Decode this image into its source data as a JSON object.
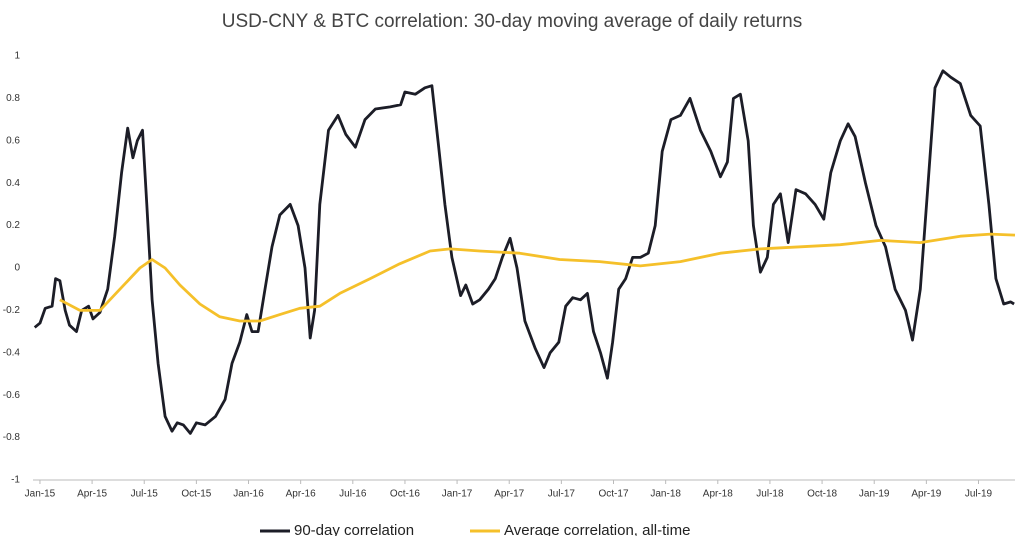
{
  "chart_data": {
    "type": "line",
    "title": "USD-CNY & BTC correlation: 30-day moving average of daily returns",
    "xlim": [
      -0.4,
      56.1
    ],
    "xticks": [
      {
        "value": 0,
        "label": "Jan-15"
      },
      {
        "value": 3,
        "label": "Apr-15"
      },
      {
        "value": 6,
        "label": "Jul-15"
      },
      {
        "value": 9,
        "label": "Oct-15"
      },
      {
        "value": 12,
        "label": "Jan-16"
      },
      {
        "value": 15,
        "label": "Apr-16"
      },
      {
        "value": 18,
        "label": "Jul-16"
      },
      {
        "value": 21,
        "label": "Oct-16"
      },
      {
        "value": 24,
        "label": "Jan-17"
      },
      {
        "value": 27,
        "label": "Apr-17"
      },
      {
        "value": 30,
        "label": "Jul-17"
      },
      {
        "value": 33,
        "label": "Oct-17"
      },
      {
        "value": 36,
        "label": "Jan-18"
      },
      {
        "value": 39,
        "label": "Apr-18"
      },
      {
        "value": 42,
        "label": "Jul-18"
      },
      {
        "value": 45,
        "label": "Oct-18"
      },
      {
        "value": 48,
        "label": "Jan-19"
      },
      {
        "value": 51,
        "label": "Apr-19"
      },
      {
        "value": 54,
        "label": "Jul-19"
      }
    ],
    "ylim": [
      -1,
      1
    ],
    "yticks": [
      1,
      0.8,
      0.6,
      0.4,
      0.2,
      0,
      -0.2,
      -0.4,
      -0.6,
      -0.8,
      -1
    ],
    "grid": false,
    "legend": "bottom",
    "series": [
      {
        "name": "90-day correlation",
        "color": "#1c1d27",
        "x": [
          -0.3,
          0,
          0.3,
          0.7,
          0.9,
          1.15,
          1.45,
          1.7,
          2.1,
          2.4,
          2.8,
          3.05,
          3.45,
          3.9,
          4.3,
          4.7,
          5.05,
          5.35,
          5.6,
          5.9,
          6.15,
          6.45,
          6.8,
          7.2,
          7.6,
          7.9,
          8.25,
          8.65,
          9.0,
          9.5,
          10.1,
          10.65,
          11.05,
          11.5,
          11.9,
          12.2,
          12.55,
          12.95,
          13.35,
          13.8,
          14.4,
          14.85,
          15.25,
          15.55,
          15.8,
          16.1,
          16.6,
          17.15,
          17.6,
          18.15,
          18.7,
          19.3,
          20.15,
          20.75,
          21.0,
          21.6,
          22.15,
          22.55,
          22.9,
          23.3,
          23.7,
          24.2,
          24.5,
          24.9,
          25.3,
          25.8,
          26.2,
          26.6,
          27.05,
          27.45,
          27.9,
          28.5,
          29.0,
          29.35,
          29.85,
          30.25,
          30.65,
          31.1,
          31.5,
          31.85,
          32.25,
          32.65,
          32.95,
          33.3,
          33.7,
          34.1,
          34.55,
          35.0,
          35.4,
          35.8,
          36.3,
          36.85,
          37.4,
          38.0,
          38.6,
          39.15,
          39.55,
          39.9,
          40.3,
          40.75,
          41.05,
          41.45,
          41.85,
          42.2,
          42.6,
          43.05,
          43.5,
          44.05,
          44.6,
          45.1,
          45.5,
          46.05,
          46.5,
          46.9,
          47.5,
          48.1,
          48.65,
          49.2,
          49.8,
          50.2,
          50.65,
          51.1,
          51.5,
          51.95,
          52.4,
          52.95,
          53.55,
          54.1,
          54.6,
          55.0,
          55.45,
          55.85,
          56.05
        ],
        "values": [
          -0.28,
          -0.26,
          -0.19,
          -0.18,
          -0.05,
          -0.06,
          -0.2,
          -0.27,
          -0.3,
          -0.2,
          -0.18,
          -0.24,
          -0.21,
          -0.1,
          0.15,
          0.45,
          0.66,
          0.52,
          0.6,
          0.65,
          0.3,
          -0.15,
          -0.45,
          -0.7,
          -0.77,
          -0.73,
          -0.74,
          -0.78,
          -0.73,
          -0.74,
          -0.7,
          -0.62,
          -0.45,
          -0.35,
          -0.22,
          -0.3,
          -0.3,
          -0.1,
          0.1,
          0.25,
          0.3,
          0.2,
          0.0,
          -0.33,
          -0.2,
          0.3,
          0.65,
          0.72,
          0.63,
          0.57,
          0.7,
          0.75,
          0.76,
          0.77,
          0.83,
          0.82,
          0.85,
          0.86,
          0.6,
          0.3,
          0.05,
          -0.13,
          -0.08,
          -0.17,
          -0.15,
          -0.1,
          -0.05,
          0.05,
          0.14,
          0.0,
          -0.25,
          -0.38,
          -0.47,
          -0.4,
          -0.35,
          -0.18,
          -0.14,
          -0.15,
          -0.12,
          -0.3,
          -0.4,
          -0.52,
          -0.35,
          -0.1,
          -0.05,
          0.05,
          0.05,
          0.07,
          0.2,
          0.55,
          0.7,
          0.72,
          0.8,
          0.65,
          0.55,
          0.43,
          0.5,
          0.8,
          0.82,
          0.6,
          0.2,
          -0.02,
          0.05,
          0.3,
          0.35,
          0.12,
          0.37,
          0.35,
          0.3,
          0.23,
          0.45,
          0.6,
          0.68,
          0.62,
          0.4,
          0.2,
          0.1,
          -0.1,
          -0.2,
          -0.34,
          -0.1,
          0.4,
          0.85,
          0.93,
          0.9,
          0.87,
          0.72,
          0.67,
          0.3,
          -0.05,
          -0.17,
          -0.16,
          -0.17
        ]
      },
      {
        "name": "Average correlation, all-time",
        "color": "#f5c02a",
        "x": [
          1.15,
          2.3,
          3.45,
          4.6,
          5.75,
          6.45,
          7.2,
          8.05,
          9.2,
          10.35,
          11.5,
          12.65,
          13.8,
          14.95,
          16.1,
          17.25,
          19.0,
          20.7,
          22.45,
          23.6,
          25.3,
          27.6,
          29.9,
          32.2,
          34.55,
          36.85,
          39.15,
          41.45,
          43.75,
          46.05,
          48.35,
          50.65,
          52.95,
          54.7,
          56.1
        ],
        "values": [
          -0.15,
          -0.2,
          -0.2,
          -0.1,
          0.0,
          0.04,
          0.0,
          -0.08,
          -0.17,
          -0.23,
          -0.25,
          -0.25,
          -0.22,
          -0.19,
          -0.18,
          -0.12,
          -0.05,
          0.02,
          0.08,
          0.09,
          0.08,
          0.07,
          0.04,
          0.03,
          0.01,
          0.03,
          0.07,
          0.09,
          0.1,
          0.11,
          0.13,
          0.12,
          0.15,
          0.16,
          0.155
        ]
      }
    ]
  }
}
